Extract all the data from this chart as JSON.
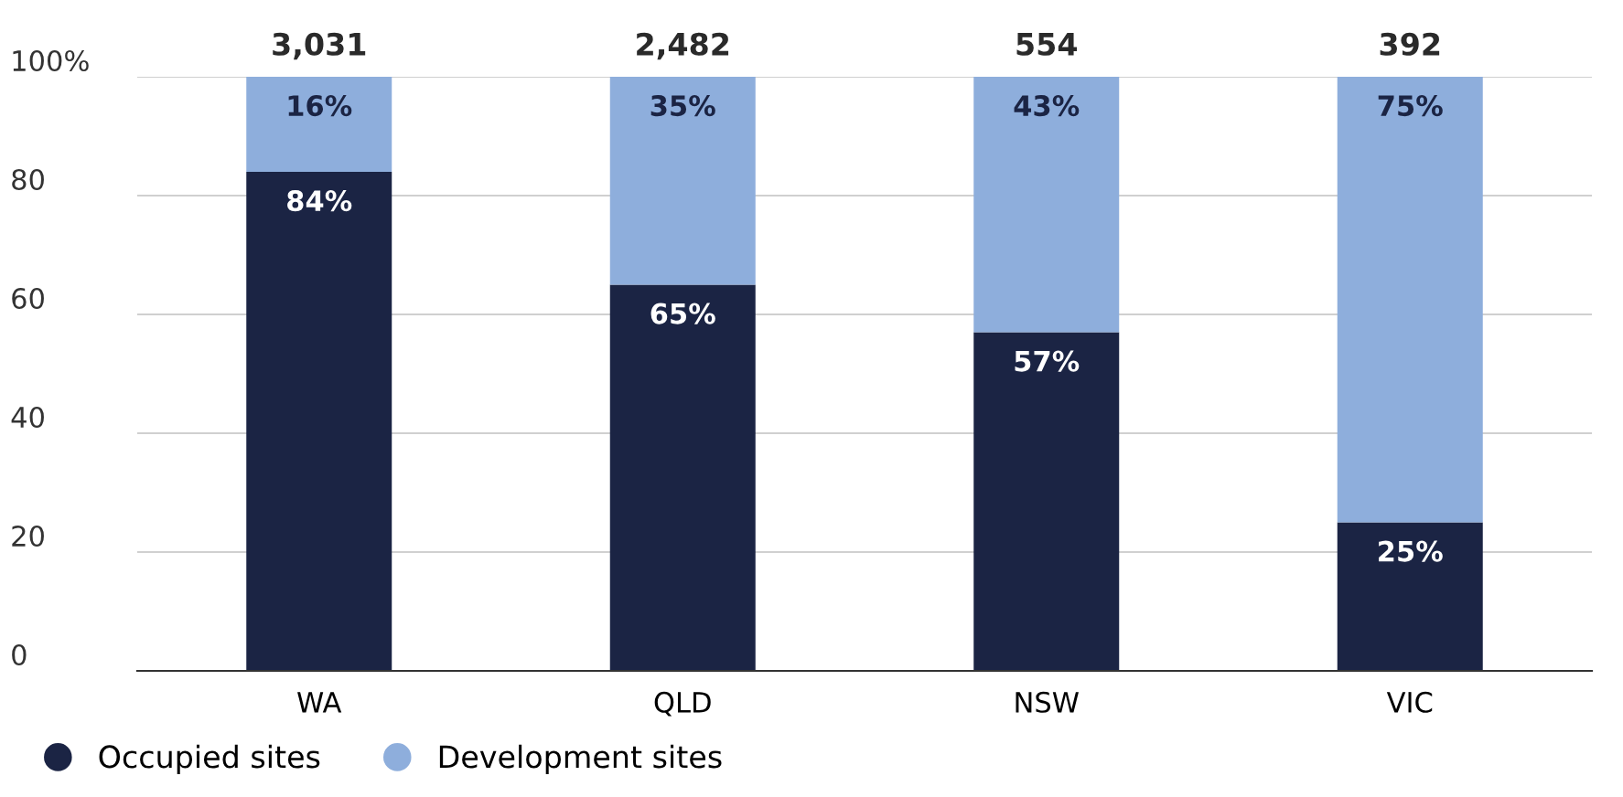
{
  "chart_data": {
    "type": "bar",
    "stacked": true,
    "categories": [
      "WA",
      "QLD",
      "NSW",
      "VIC"
    ],
    "series": [
      {
        "name": "Occupied sites",
        "color": "#1b2444",
        "values": [
          84,
          65,
          57,
          25
        ],
        "value_labels": [
          "84%",
          "65%",
          "57%",
          "25%"
        ]
      },
      {
        "name": "Development sites",
        "color": "#8eaedc",
        "values": [
          16,
          35,
          43,
          75
        ],
        "value_labels": [
          "16%",
          "35%",
          "43%",
          "75%"
        ]
      }
    ],
    "annotations": [
      {
        "text": "3,031",
        "x": "WA",
        "y": 100
      },
      {
        "text": "2,482",
        "x": "QLD",
        "y": 100
      },
      {
        "text": "554",
        "x": "NSW",
        "y": 100
      },
      {
        "text": "392",
        "x": "VIC",
        "y": 100
      }
    ],
    "ylim": [
      0,
      100
    ],
    "yticks": [
      0,
      20,
      40,
      60,
      80,
      {
        "value": 100,
        "label": "100%"
      }
    ],
    "grid": "y",
    "legend": "bottom left"
  }
}
